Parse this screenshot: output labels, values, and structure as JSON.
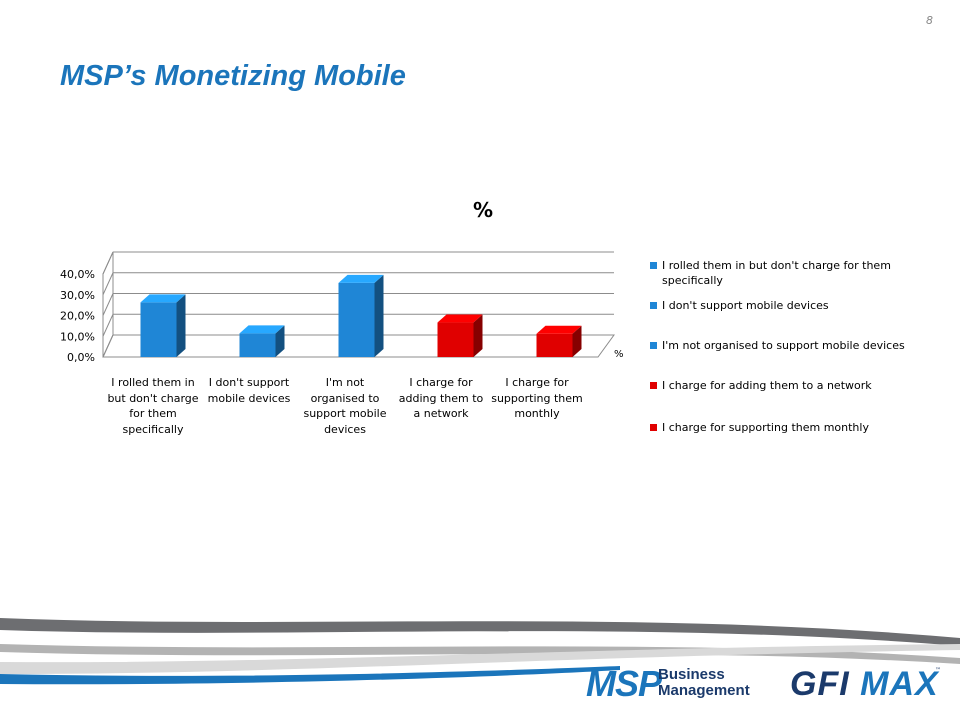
{
  "slide": {
    "number": "8",
    "title": "MSP’s Monetizing Mobile"
  },
  "chart_data": {
    "type": "bar",
    "title": "%",
    "categories": [
      "I rolled them in but don't charge for them specifically",
      "I don't support mobile devices",
      "I'm not organised to support mobile devices",
      "I charge for adding them to a network",
      "I charge for supporting them monthly"
    ],
    "values": [
      26.3,
      11.4,
      35.7,
      16.6,
      11.2
    ],
    "colors": [
      "#1f86d6",
      "#1f86d6",
      "#1f86d6",
      "#e00000",
      "#e00000"
    ],
    "ylim": [
      0,
      40
    ],
    "yticks": [
      "0,0%",
      "10,0%",
      "20,0%",
      "30,0%",
      "40,0%"
    ],
    "depth_axis_label": "%",
    "grid": true,
    "legend_position": "right",
    "legend": [
      {
        "label": "I rolled them in but don't charge for them specifically",
        "color": "#1f86d6"
      },
      {
        "label": "I don't support mobile devices",
        "color": "#1f86d6"
      },
      {
        "label": "I'm not organised to support mobile devices",
        "color": "#1f86d6"
      },
      {
        "label": "I charge for adding them to a network",
        "color": "#e00000"
      },
      {
        "label": "I charge for supporting them monthly",
        "color": "#e00000"
      }
    ]
  },
  "branding": {
    "msp_logo_big": "MSP",
    "msp_logo_line1": "Business",
    "msp_logo_line2": "Management",
    "gfi_logo_part1": "GFI",
    "gfi_logo_part2": "MAX",
    "trademark": "™",
    "colors": {
      "primary_blue": "#1b75bb",
      "dark_navy": "#1b3a6b"
    }
  }
}
